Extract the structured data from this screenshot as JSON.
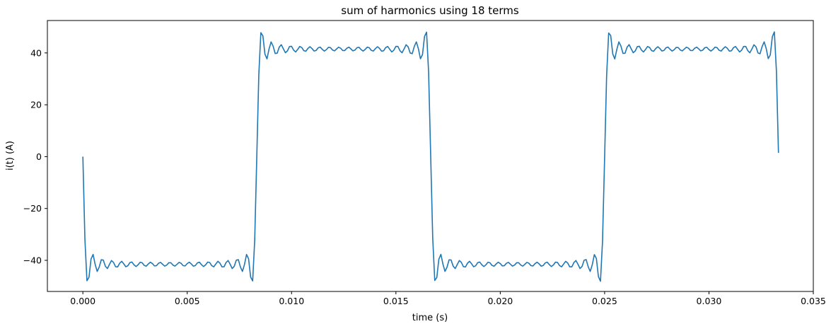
{
  "chart_data": {
    "type": "line",
    "title": "sum of harmonics using 18 terms",
    "xlabel": "time (s)",
    "ylabel": "i(t) (A)",
    "xlim": [
      -0.0017,
      0.035
    ],
    "ylim": [
      -52,
      52.5
    ],
    "x_ticks": [
      0.0,
      0.005,
      0.01,
      0.015,
      0.02,
      0.025,
      0.03,
      0.035
    ],
    "x_tick_labels": [
      "0.000",
      "0.005",
      "0.010",
      "0.015",
      "0.020",
      "0.025",
      "0.030",
      "0.035"
    ],
    "y_ticks": [
      -40,
      -20,
      0,
      20,
      40
    ],
    "y_tick_labels": [
      "−40",
      "−20",
      "0",
      "20",
      "40"
    ],
    "grid": false,
    "legend": "none",
    "series": [
      {
        "color": "#1f77b4",
        "function": "fourier-square-wave",
        "amplitude": 41.5,
        "period": 0.016667,
        "terms": 18,
        "x_start": 0.0,
        "x_end": 0.03333,
        "sample_count": 340
      }
    ]
  }
}
